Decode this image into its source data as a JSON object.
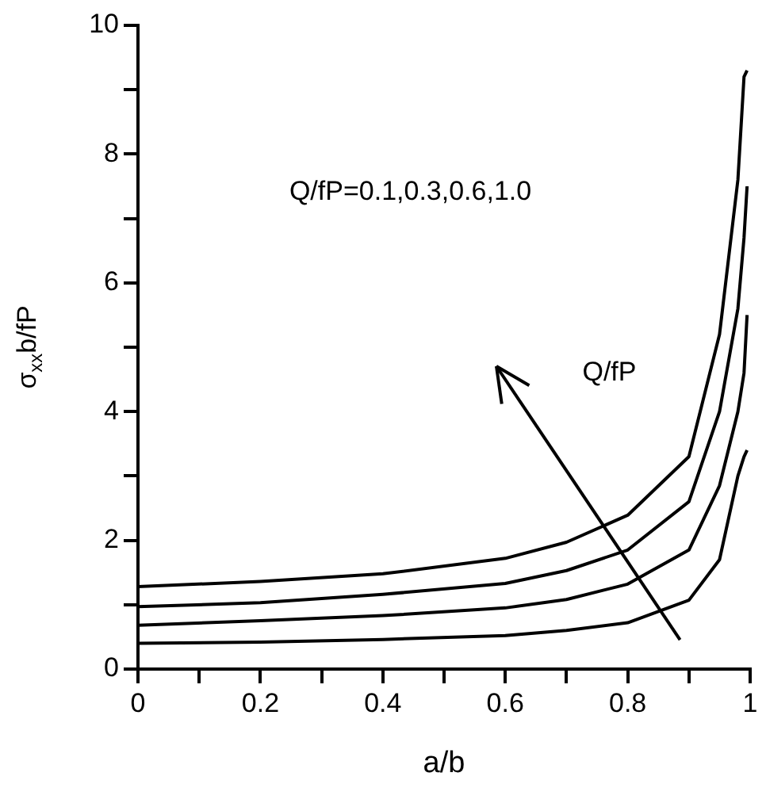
{
  "chart_data": {
    "type": "line",
    "xlabel": "a/b",
    "ylabel": "σ$_{xx}$b/fP",
    "x": [
      0,
      0.2,
      0.4,
      0.6,
      0.7,
      0.8,
      0.9,
      0.95,
      0.98,
      0.99,
      0.995
    ],
    "series": [
      {
        "color": "#000000",
        "values": [
          0.4,
          0.42,
          0.46,
          0.52,
          0.6,
          0.72,
          1.07,
          1.7,
          3.0,
          3.3,
          3.4
        ]
      },
      {
        "color": "#000000",
        "values": [
          0.68,
          0.75,
          0.83,
          0.95,
          1.08,
          1.32,
          1.85,
          2.85,
          4.0,
          4.6,
          5.5
        ]
      },
      {
        "color": "#000000",
        "values": [
          0.97,
          1.03,
          1.16,
          1.33,
          1.53,
          1.85,
          2.6,
          4.0,
          5.6,
          6.7,
          7.5
        ]
      },
      {
        "color": "#000000",
        "values": [
          1.28,
          1.36,
          1.48,
          1.72,
          1.97,
          2.39,
          3.3,
          5.2,
          7.6,
          9.2,
          9.3
        ]
      }
    ],
    "xlim": [
      0,
      1
    ],
    "xticks": [
      0,
      {
        "value": 0.1,
        "label": null
      },
      0.2,
      {
        "value": 0.3,
        "label": null
      },
      0.4,
      {
        "value": 0.5,
        "label": null
      },
      0.6,
      {
        "value": 0.7,
        "label": null
      },
      0.8,
      {
        "value": 0.9,
        "label": null
      },
      1
    ],
    "ylim": [
      0,
      10
    ],
    "yticks": [
      0,
      {
        "value": 1,
        "label": null
      },
      2,
      {
        "value": 3,
        "label": null
      },
      4,
      {
        "value": 5,
        "label": null
      },
      6,
      {
        "value": 7,
        "label": null
      },
      8,
      {
        "value": 9,
        "label": null
      },
      10
    ],
    "annotations": [
      "Q/fP=0.1,0.3,0.6,1.0",
      "Q/fP"
    ],
    "grid": false,
    "legend": false,
    "marker": "none",
    "line_style": "solid"
  }
}
